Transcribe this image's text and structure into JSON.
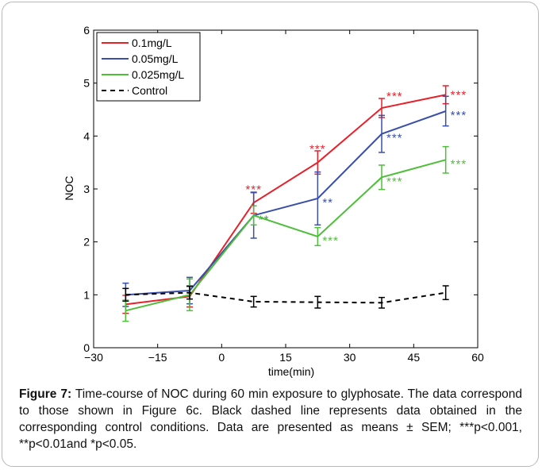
{
  "chart_data": {
    "type": "line",
    "xlabel": "time(min)",
    "ylabel": "NOC",
    "xlim": [
      -30,
      60
    ],
    "ylim": [
      0,
      6
    ],
    "xticks": [
      -30,
      -15,
      0,
      15,
      30,
      45,
      60
    ],
    "yticks": [
      0,
      1,
      2,
      3,
      4,
      5,
      6
    ],
    "xtick_labels": [
      "−30",
      "−15",
      "0",
      "15",
      "30",
      "45",
      "60"
    ],
    "ytick_labels": [
      "0",
      "1",
      "2",
      "3",
      "4",
      "5",
      "6"
    ],
    "grid": false,
    "legend_position": "top-left",
    "series": [
      {
        "name": "0.1mg/L",
        "color": "#e8202a",
        "dash": "solid",
        "x": [
          -22.5,
          -7.5,
          7.5,
          22.5,
          37.5,
          52.5
        ],
        "y": [
          0.82,
          0.97,
          2.74,
          3.5,
          4.53,
          4.78
        ],
        "err": [
          0.17,
          0.2,
          0.2,
          0.22,
          0.18,
          0.17
        ],
        "stars": [
          "",
          "",
          "***",
          "***",
          "***",
          "***"
        ]
      },
      {
        "name": "0.05mg/L",
        "color": "#3a4fa8",
        "dash": "solid",
        "x": [
          -22.5,
          -7.5,
          7.5,
          22.5,
          37.5,
          52.5
        ],
        "y": [
          1.0,
          1.08,
          2.5,
          2.82,
          4.04,
          4.47
        ],
        "err": [
          0.22,
          0.25,
          0.43,
          0.5,
          0.35,
          0.28
        ],
        "stars": [
          "",
          "",
          "**",
          "**",
          "***",
          "***"
        ]
      },
      {
        "name": "0.025mg/L",
        "color": "#4fbe3a",
        "dash": "solid",
        "x": [
          -22.5,
          -7.5,
          7.5,
          22.5,
          37.5,
          52.5
        ],
        "y": [
          0.7,
          1.0,
          2.5,
          2.1,
          3.22,
          3.55
        ],
        "err": [
          0.2,
          0.3,
          0.18,
          0.17,
          0.23,
          0.25
        ],
        "stars": [
          "",
          "",
          "**",
          "***",
          "***",
          "***"
        ]
      },
      {
        "name": "Control",
        "color": "#000000",
        "dash": "dashed",
        "x": [
          -22.5,
          -7.5,
          7.5,
          22.5,
          37.5,
          52.5
        ],
        "y": [
          1.0,
          1.04,
          0.87,
          0.86,
          0.85,
          1.04
        ],
        "err": [
          0.12,
          0.12,
          0.1,
          0.11,
          0.1,
          0.13
        ],
        "stars": [
          "",
          "",
          "",
          "",
          "",
          ""
        ]
      }
    ]
  },
  "caption": {
    "label": "Figure 7:",
    "text": " Time-course of NOC during 60 min exposure to glyphosate. The data correspond to those shown in Figure 6c. Black dashed line represents data obtained in the corresponding control conditions. Data are presented as means ± SEM; ***p<0.001, **p<0.01and *p<0.05."
  }
}
